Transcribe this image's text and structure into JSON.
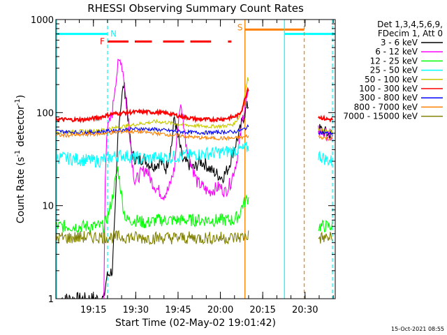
{
  "chart_data": {
    "type": "line",
    "title": "RHESSI Observing Summary Count Rates",
    "xlabel": "Start Time (02-May-02 19:01:42)",
    "ylabel_main": "Count Rate (s",
    "ylabel_sup1": "-1",
    "ylabel_mid": " detector",
    "ylabel_sup2": "-1",
    "ylabel_end": ")",
    "yscale": "log",
    "ylim": [
      1,
      1000
    ],
    "xlim_minutes": [
      0,
      99
    ],
    "y_ticks": [
      {
        "value": 1,
        "label": "1"
      },
      {
        "value": 10,
        "label": "10"
      },
      {
        "value": 100,
        "label": "100"
      },
      {
        "value": 1000,
        "label": "1000"
      }
    ],
    "x_ticks": [
      {
        "minute": 13.3,
        "label": "19:15"
      },
      {
        "minute": 28.3,
        "label": "19:30"
      },
      {
        "minute": 43.3,
        "label": "19:45"
      },
      {
        "minute": 58.3,
        "label": "20:00"
      },
      {
        "minute": 73.3,
        "label": "20:15"
      },
      {
        "minute": 88.3,
        "label": "20:30"
      }
    ],
    "legend": {
      "header1": "Det 1,3,4,5,6,9,",
      "header2": "FDecim 1, Att 0",
      "position": "right"
    },
    "series": [
      {
        "name": "3 - 6 keV",
        "color": "#000000",
        "points": [
          [
            2,
            1
          ],
          [
            17,
            1
          ],
          [
            17.5,
            1.3
          ],
          [
            18,
            1.7
          ],
          [
            19,
            1.9
          ],
          [
            20,
            2
          ],
          [
            21,
            8
          ],
          [
            22,
            60
          ],
          [
            23,
            120
          ],
          [
            24,
            200
          ],
          [
            25,
            140
          ],
          [
            26,
            60
          ],
          [
            27,
            35
          ],
          [
            29,
            30
          ],
          [
            31,
            33
          ],
          [
            33,
            28
          ],
          [
            35,
            27
          ],
          [
            37,
            30
          ],
          [
            39,
            25
          ],
          [
            41,
            45
          ],
          [
            42,
            90
          ],
          [
            43,
            60
          ],
          [
            45,
            30
          ],
          [
            47,
            28
          ],
          [
            49,
            25
          ],
          [
            51,
            30
          ],
          [
            53,
            28
          ],
          [
            55,
            24
          ],
          [
            57,
            22
          ],
          [
            59,
            20
          ],
          [
            61,
            25
          ],
          [
            63,
            40
          ],
          [
            65,
            60
          ],
          [
            66,
            80
          ],
          [
            67,
            100
          ],
          [
            68,
            120
          ],
          [
            94,
            65
          ],
          [
            96,
            60
          ],
          [
            98,
            58
          ]
        ]
      },
      {
        "name": "6 - 12 keV",
        "color": "#ff00ff",
        "points": [
          [
            17,
            1
          ],
          [
            17.5,
            20
          ],
          [
            18,
            60
          ],
          [
            20,
            100
          ],
          [
            21,
            200
          ],
          [
            22,
            320
          ],
          [
            23,
            380
          ],
          [
            24,
            250
          ],
          [
            25,
            120
          ],
          [
            26,
            70
          ],
          [
            27,
            30
          ],
          [
            28,
            18
          ],
          [
            30,
            22
          ],
          [
            32,
            25
          ],
          [
            34,
            18
          ],
          [
            36,
            15
          ],
          [
            38,
            13
          ],
          [
            40,
            15
          ],
          [
            42,
            25
          ],
          [
            43,
            60
          ],
          [
            44,
            120
          ],
          [
            45,
            90
          ],
          [
            46,
            50
          ],
          [
            48,
            28
          ],
          [
            50,
            18
          ],
          [
            52,
            16
          ],
          [
            54,
            14
          ],
          [
            56,
            15
          ],
          [
            58,
            16
          ],
          [
            60,
            14
          ],
          [
            62,
            18
          ],
          [
            64,
            30
          ],
          [
            65,
            45
          ],
          [
            66,
            80
          ],
          [
            67,
            120
          ],
          [
            68,
            150
          ],
          [
            94,
            62
          ],
          [
            96,
            58
          ],
          [
            98,
            55
          ]
        ]
      },
      {
        "name": "12 - 25 keV",
        "color": "#00ff00",
        "points": [
          [
            0,
            6
          ],
          [
            5,
            6
          ],
          [
            10,
            6
          ],
          [
            15,
            6
          ],
          [
            17,
            6
          ],
          [
            18,
            7
          ],
          [
            19,
            9
          ],
          [
            20,
            12
          ],
          [
            21,
            18
          ],
          [
            22,
            25
          ],
          [
            23,
            15
          ],
          [
            24,
            9
          ],
          [
            25,
            7
          ],
          [
            28,
            7
          ],
          [
            32,
            6.5
          ],
          [
            36,
            7
          ],
          [
            40,
            7
          ],
          [
            44,
            7
          ],
          [
            48,
            7
          ],
          [
            52,
            7
          ],
          [
            56,
            7
          ],
          [
            60,
            7
          ],
          [
            63,
            7
          ],
          [
            65,
            8
          ],
          [
            66,
            10
          ],
          [
            68,
            12
          ],
          [
            93,
            6
          ],
          [
            96,
            6
          ],
          [
            98,
            6
          ]
        ]
      },
      {
        "name": "25 - 50 keV",
        "color": "#00ffff",
        "points": [
          [
            0,
            33
          ],
          [
            5,
            32
          ],
          [
            10,
            31
          ],
          [
            15,
            30
          ],
          [
            18,
            32
          ],
          [
            21,
            34
          ],
          [
            24,
            35
          ],
          [
            27,
            33
          ],
          [
            30,
            32
          ],
          [
            33,
            32
          ],
          [
            36,
            33
          ],
          [
            40,
            33
          ],
          [
            44,
            34
          ],
          [
            48,
            35
          ],
          [
            52,
            36
          ],
          [
            56,
            37
          ],
          [
            60,
            38
          ],
          [
            63,
            39
          ],
          [
            66,
            40
          ],
          [
            68,
            42
          ],
          [
            93,
            35
          ],
          [
            96,
            31
          ],
          [
            98,
            30
          ]
        ]
      },
      {
        "name": "50 - 100 keV",
        "color": "#c8c800",
        "points": [
          [
            0,
            62
          ],
          [
            5,
            62
          ],
          [
            10,
            63
          ],
          [
            15,
            64
          ],
          [
            20,
            68
          ],
          [
            25,
            72
          ],
          [
            30,
            76
          ],
          [
            35,
            80
          ],
          [
            40,
            78
          ],
          [
            45,
            74
          ],
          [
            50,
            72
          ],
          [
            55,
            71
          ],
          [
            60,
            72
          ],
          [
            63,
            75
          ],
          [
            65,
            90
          ],
          [
            66,
            110
          ],
          [
            67,
            160
          ],
          [
            68,
            230
          ],
          [
            93,
            66
          ],
          [
            96,
            63
          ],
          [
            98,
            62
          ]
        ]
      },
      {
        "name": "100 - 300 keV",
        "color": "#ff0000",
        "points": [
          [
            0,
            85
          ],
          [
            5,
            84
          ],
          [
            10,
            84
          ],
          [
            15,
            88
          ],
          [
            20,
            97
          ],
          [
            25,
            100
          ],
          [
            30,
            102
          ],
          [
            35,
            101
          ],
          [
            40,
            98
          ],
          [
            45,
            90
          ],
          [
            50,
            85
          ],
          [
            55,
            84
          ],
          [
            60,
            86
          ],
          [
            63,
            90
          ],
          [
            65,
            95
          ],
          [
            66,
            110
          ],
          [
            67,
            140
          ],
          [
            68,
            180
          ],
          [
            93,
            90
          ],
          [
            96,
            85
          ],
          [
            98,
            84
          ]
        ]
      },
      {
        "name": "300 - 800 keV",
        "color": "#0000ff",
        "points": [
          [
            0,
            63
          ],
          [
            5,
            62
          ],
          [
            10,
            61
          ],
          [
            15,
            62
          ],
          [
            20,
            64
          ],
          [
            25,
            66
          ],
          [
            30,
            67
          ],
          [
            35,
            66
          ],
          [
            40,
            64
          ],
          [
            45,
            62
          ],
          [
            50,
            61
          ],
          [
            55,
            61
          ],
          [
            60,
            62
          ],
          [
            63,
            62
          ],
          [
            66,
            65
          ],
          [
            68,
            70
          ],
          [
            93,
            62
          ],
          [
            96,
            60
          ],
          [
            98,
            60
          ]
        ]
      },
      {
        "name": "800 - 7000 keV",
        "color": "#ff8000",
        "points": [
          [
            0,
            57
          ],
          [
            5,
            57
          ],
          [
            10,
            58
          ],
          [
            15,
            59
          ],
          [
            20,
            61
          ],
          [
            25,
            63
          ],
          [
            30,
            62
          ],
          [
            35,
            60
          ],
          [
            40,
            58
          ],
          [
            45,
            56
          ],
          [
            50,
            54
          ],
          [
            55,
            53
          ],
          [
            60,
            53
          ],
          [
            63,
            53
          ],
          [
            66,
            54
          ],
          [
            68,
            56
          ],
          [
            93,
            55
          ],
          [
            96,
            53
          ],
          [
            98,
            52
          ]
        ]
      },
      {
        "name": "7000 - 15000 keV",
        "color": "#808000",
        "points": [
          [
            0,
            4.5
          ],
          [
            5,
            4.5
          ],
          [
            10,
            4.6
          ],
          [
            15,
            4.6
          ],
          [
            20,
            4.6
          ],
          [
            25,
            4.6
          ],
          [
            30,
            4.5
          ],
          [
            35,
            4.5
          ],
          [
            40,
            4.5
          ],
          [
            45,
            4.5
          ],
          [
            50,
            4.5
          ],
          [
            55,
            4.5
          ],
          [
            60,
            4.5
          ],
          [
            63,
            4.5
          ],
          [
            66,
            4.6
          ],
          [
            68,
            4.8
          ],
          [
            93,
            4.5
          ],
          [
            96,
            4.5
          ],
          [
            98,
            4.5
          ]
        ]
      }
    ],
    "flags": {
      "night": {
        "label": "N",
        "color": "#00ffff",
        "level": 700,
        "intervals": [
          [
            0,
            18.3
          ],
          [
            81,
            99
          ]
        ],
        "boundaries_solid": [
          0.3,
          81
        ],
        "boundaries_dashed": [
          18.3,
          98
        ]
      },
      "saa": {
        "label": "S",
        "color": "#ff8000",
        "level": 780,
        "intervals": [
          [
            67,
            88
          ]
        ],
        "boundaries_solid": [
          67
        ],
        "boundaries_dashed": [
          88
        ]
      },
      "flare": {
        "label": "F",
        "color": "#ff0000",
        "level": 580,
        "intervals": [
          [
            18.3,
            34
          ],
          [
            38,
            55
          ],
          [
            61,
            62.2
          ]
        ]
      }
    },
    "footer_timestamp": "15-Oct-2021 08:55"
  }
}
